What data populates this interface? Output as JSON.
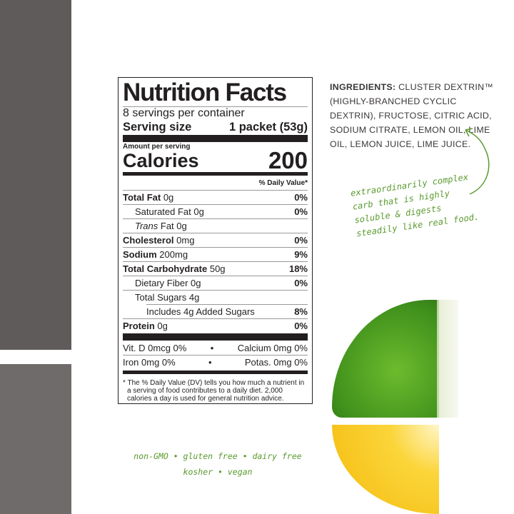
{
  "label": {
    "title": "Nutrition Facts",
    "servings": "8 servings per container",
    "serving_size_label": "Serving size",
    "serving_size_value": "1 packet (53g)",
    "amount_per_serving": "Amount per serving",
    "calories_label": "Calories",
    "calories_value": "200",
    "daily_value_header": "% Daily Value*",
    "rows": [
      {
        "name": "Total Fat",
        "amount": "0g",
        "dv": "0%"
      },
      {
        "name": "Saturated Fat",
        "amount": "0g",
        "dv": "0%"
      },
      {
        "name": "Trans",
        "amount": "Fat 0g",
        "dv": ""
      },
      {
        "name": "Cholesterol",
        "amount": "0mg",
        "dv": "0%"
      },
      {
        "name": "Sodium",
        "amount": "200mg",
        "dv": "9%"
      },
      {
        "name": "Total Carbohydrate",
        "amount": "50g",
        "dv": "18%"
      },
      {
        "name": "Dietary Fiber",
        "amount": "0g",
        "dv": "0%"
      },
      {
        "name": "Total Sugars",
        "amount": "4g",
        "dv": ""
      },
      {
        "name": "Includes 4g Added Sugars",
        "amount": "",
        "dv": "8%"
      },
      {
        "name": "Protein",
        "amount": "0g",
        "dv": "0%"
      }
    ],
    "vitamins": [
      {
        "left": "Vit. D 0mcg 0%",
        "right": "Calcium 0mg 0%"
      },
      {
        "left": "Iron 0mg 0%",
        "right": "Potas. 0mg 0%"
      }
    ],
    "bullet": "•",
    "footnote": "* The % Daily Value (DV) tells you how much a nutrient in a serving of food contributes to a daily diet. 2,000 calories a day is used for general nutrition advice."
  },
  "ingredients": {
    "heading": "INGREDIENTS:",
    "text": "CLUSTER DEXTRIN™ (HIGHLY-BRANCHED CYCLIC DEXTRIN), FRUCTOSE, CITRIC ACID, SODIUM CITRATE, LEMON OIL, LIME OIL, LEMON JUICE, LIME JUICE."
  },
  "note": "extraordinarily complex carb that is highly soluble & digests steadily like real food.",
  "badges": {
    "line1": "non-GMO • gluten free • dairy free",
    "line2": "kosher • vegan"
  },
  "colors": {
    "accent_green": "#5a9a2e",
    "side_bar": "#5f5b5a"
  }
}
